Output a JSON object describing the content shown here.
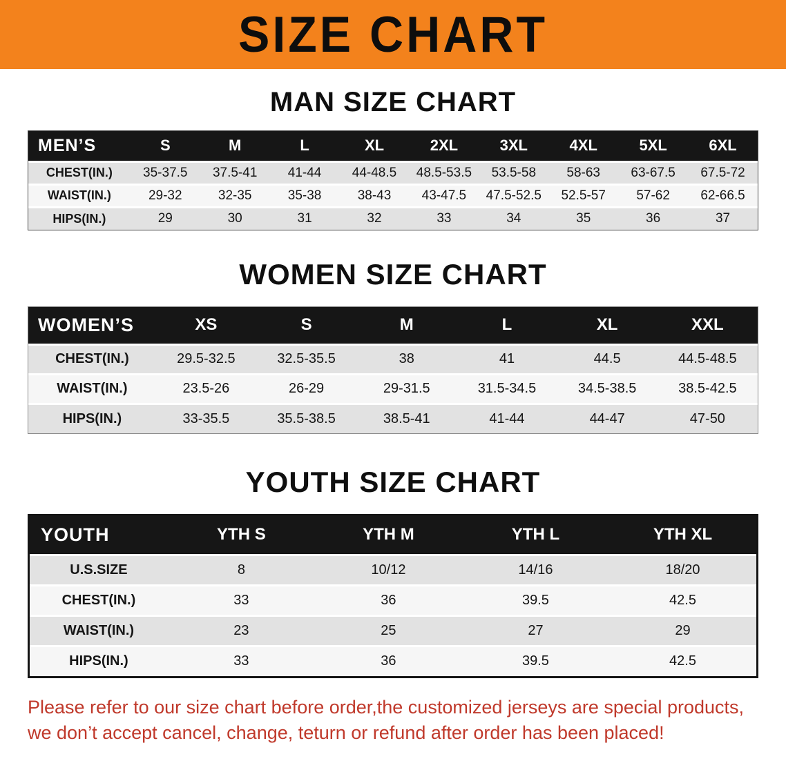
{
  "banner": {
    "title": "SIZE CHART"
  },
  "sections": [
    {
      "heading": "MAN SIZE CHART",
      "table": {
        "header": [
          "MEN’S",
          "S",
          "M",
          "L",
          "XL",
          "2XL",
          "3XL",
          "4XL",
          "5XL",
          "6XL"
        ],
        "rows": [
          [
            "CHEST(IN.)",
            "35-37.5",
            "37.5-41",
            "41-44",
            "44-48.5",
            "48.5-53.5",
            "53.5-58",
            "58-63",
            "63-67.5",
            "67.5-72"
          ],
          [
            "WAIST(IN.)",
            "29-32",
            "32-35",
            "35-38",
            "38-43",
            "43-47.5",
            "47.5-52.5",
            "52.5-57",
            "57-62",
            "62-66.5"
          ],
          [
            "HIPS(IN.)",
            "29",
            "30",
            "31",
            "32",
            "33",
            "34",
            "35",
            "36",
            "37"
          ]
        ]
      }
    },
    {
      "heading": "WOMEN SIZE CHART",
      "table": {
        "header": [
          "WOMEN’S",
          "XS",
          "S",
          "M",
          "L",
          "XL",
          "XXL"
        ],
        "rows": [
          [
            "CHEST(IN.)",
            "29.5-32.5",
            "32.5-35.5",
            "38",
            "41",
            "44.5",
            "44.5-48.5"
          ],
          [
            "WAIST(IN.)",
            "23.5-26",
            "26-29",
            "29-31.5",
            "31.5-34.5",
            "34.5-38.5",
            "38.5-42.5"
          ],
          [
            "HIPS(IN.)",
            "33-35.5",
            "35.5-38.5",
            "38.5-41",
            "41-44",
            "44-47",
            "47-50"
          ]
        ]
      }
    },
    {
      "heading": "YOUTH SIZE CHART",
      "table": {
        "header": [
          "YOUTH",
          "YTH S",
          "YTH M",
          "YTH L",
          "YTH XL"
        ],
        "rows": [
          [
            "U.S.SIZE",
            "8",
            "10/12",
            "14/16",
            "18/20"
          ],
          [
            "CHEST(IN.)",
            "33",
            "36",
            "39.5",
            "42.5"
          ],
          [
            "WAIST(IN.)",
            "23",
            "25",
            "27",
            "29"
          ],
          [
            "HIPS(IN.)",
            "33",
            "36",
            "39.5",
            "42.5"
          ]
        ]
      }
    }
  ],
  "footer": {
    "line1": "Please refer to our size chart before order,the customized jerseys are special products,",
    "line2": "we don’t accept cancel, change, teturn or refund after order has been placed!"
  },
  "colors": {
    "banner_orange": "#F3821C",
    "header_black": "#161616",
    "row_gray": "#E2E2E2",
    "row_light": "#F6F6F6",
    "footer_red": "#C0392B"
  }
}
